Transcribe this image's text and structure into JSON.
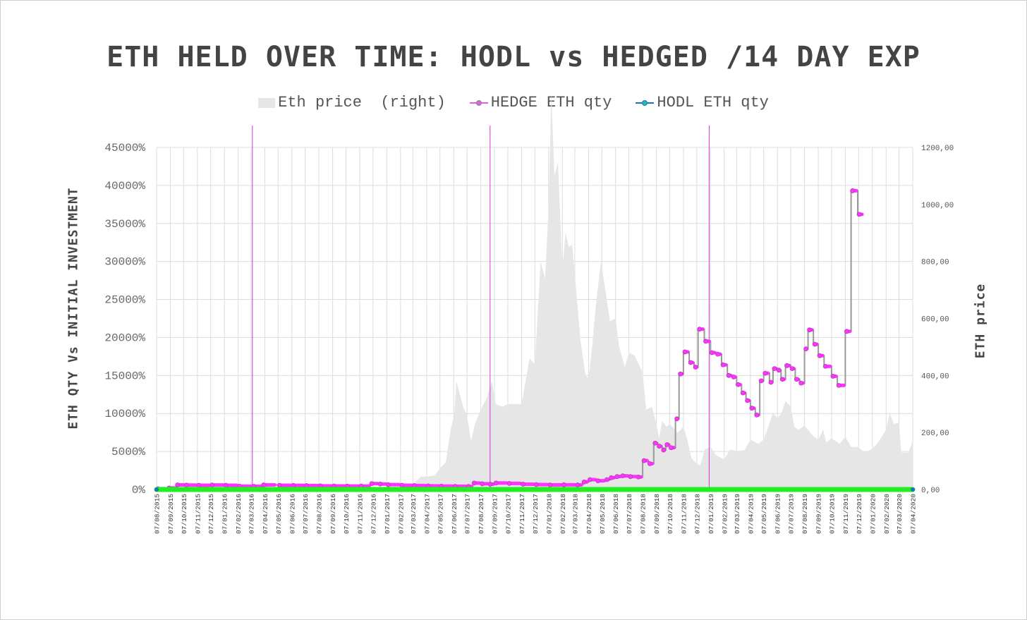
{
  "chart_data": {
    "type": "line",
    "title": "ETH HELD OVER TIME: HODL vs HEDGED /14 DAY EXP",
    "ylabel": "ETH QTY Vs INITIAL INVESTMENT",
    "ylabel_right": "ETH price",
    "ylim": [
      0,
      45000
    ],
    "ylim_right": [
      0,
      1200
    ],
    "y_ticks": [
      "0%",
      "5000%",
      "10000%",
      "15000%",
      "20000%",
      "25000%",
      "30000%",
      "35000%",
      "40000%",
      "45000%"
    ],
    "y_ticks_right": [
      "0,00",
      "200,00",
      "400,00",
      "600,00",
      "800,00",
      "1000,00",
      "1200,00"
    ],
    "x_ticks": [
      "07/08/2015",
      "07/09/2015",
      "07/10/2015",
      "07/11/2015",
      "07/12/2015",
      "07/01/2016",
      "07/02/2016",
      "07/03/2016",
      "07/04/2016",
      "07/05/2016",
      "07/06/2016",
      "07/07/2016",
      "07/08/2016",
      "07/09/2016",
      "07/10/2016",
      "07/11/2016",
      "07/12/2016",
      "07/01/2017",
      "07/02/2017",
      "07/03/2017",
      "07/04/2017",
      "07/05/2017",
      "07/06/2017",
      "07/07/2017",
      "07/08/2017",
      "07/09/2017",
      "07/10/2017",
      "07/11/2017",
      "07/12/2017",
      "07/01/2018",
      "07/02/2018",
      "07/03/2018",
      "07/04/2018",
      "07/05/2018",
      "07/06/2018",
      "07/07/2018",
      "07/08/2018",
      "07/09/2018",
      "07/10/2018",
      "07/11/2018",
      "07/12/2018",
      "07/01/2019",
      "07/02/2019",
      "07/03/2019",
      "07/04/2019",
      "07/05/2019",
      "07/06/2019",
      "07/07/2019",
      "07/08/2019",
      "07/09/2019",
      "07/10/2019",
      "07/11/2019",
      "07/12/2019",
      "07/01/2020",
      "07/02/2020",
      "07/03/2020",
      "07/04/2020"
    ],
    "legend_position": "top-center",
    "grid": true,
    "vertical_markers": [
      "2016-03-10",
      "2017-08-28",
      "2019-01-04"
    ],
    "colors": {
      "eth_price": "#e6e6e6",
      "hedge": "#ff33ff",
      "hedge_line": "#999999",
      "hodl": "#22ee22",
      "marker_lines": "#d633d6",
      "grid": "#dcdcdc"
    },
    "series": [
      {
        "name": "Eth price  (right)",
        "kind": "area",
        "axis": "right",
        "points": [
          [
            "2015-08-07",
            3
          ],
          [
            "2015-09-07",
            1
          ],
          [
            "2015-10-07",
            0.6
          ],
          [
            "2015-11-07",
            1
          ],
          [
            "2015-12-07",
            0.9
          ],
          [
            "2016-01-07",
            1
          ],
          [
            "2016-02-07",
            2
          ],
          [
            "2016-03-07",
            8
          ],
          [
            "2016-04-07",
            10
          ],
          [
            "2016-05-07",
            9
          ],
          [
            "2016-06-07",
            14
          ],
          [
            "2016-07-07",
            11
          ],
          [
            "2016-08-07",
            11
          ],
          [
            "2016-09-07",
            12
          ],
          [
            "2016-10-07",
            12
          ],
          [
            "2016-11-07",
            10
          ],
          [
            "2016-12-07",
            8
          ],
          [
            "2017-01-07",
            10
          ],
          [
            "2017-02-07",
            11
          ],
          [
            "2017-03-07",
            18
          ],
          [
            "2017-03-25",
            45
          ],
          [
            "2017-04-07",
            45
          ],
          [
            "2017-04-25",
            50
          ],
          [
            "2017-05-07",
            75
          ],
          [
            "2017-05-20",
            95
          ],
          [
            "2017-05-31",
            210
          ],
          [
            "2017-06-08",
            260
          ],
          [
            "2017-06-13",
            380
          ],
          [
            "2017-06-20",
            340
          ],
          [
            "2017-06-28",
            290
          ],
          [
            "2017-07-07",
            260
          ],
          [
            "2017-07-16",
            170
          ],
          [
            "2017-07-25",
            230
          ],
          [
            "2017-08-07",
            280
          ],
          [
            "2017-08-20",
            320
          ],
          [
            "2017-09-01",
            380
          ],
          [
            "2017-09-10",
            300
          ],
          [
            "2017-09-25",
            290
          ],
          [
            "2017-10-07",
            300
          ],
          [
            "2017-10-25",
            300
          ],
          [
            "2017-11-07",
            300
          ],
          [
            "2017-11-25",
            460
          ],
          [
            "2017-12-07",
            440
          ],
          [
            "2017-12-20",
            800
          ],
          [
            "2017-12-30",
            740
          ],
          [
            "2018-01-07",
            990
          ],
          [
            "2018-01-13",
            1390
          ],
          [
            "2018-01-20",
            1100
          ],
          [
            "2018-01-28",
            1150
          ],
          [
            "2018-02-07",
            770
          ],
          [
            "2018-02-14",
            900
          ],
          [
            "2018-02-22",
            850
          ],
          [
            "2018-03-01",
            860
          ],
          [
            "2018-03-10",
            700
          ],
          [
            "2018-03-20",
            520
          ],
          [
            "2018-03-31",
            400
          ],
          [
            "2018-04-07",
            390
          ],
          [
            "2018-04-15",
            500
          ],
          [
            "2018-04-23",
            640
          ],
          [
            "2018-05-05",
            800
          ],
          [
            "2018-05-15",
            700
          ],
          [
            "2018-05-25",
            590
          ],
          [
            "2018-06-07",
            600
          ],
          [
            "2018-06-15",
            500
          ],
          [
            "2018-06-28",
            430
          ],
          [
            "2018-07-07",
            480
          ],
          [
            "2018-07-20",
            470
          ],
          [
            "2018-08-07",
            410
          ],
          [
            "2018-08-15",
            280
          ],
          [
            "2018-08-28",
            290
          ],
          [
            "2018-09-07",
            230
          ],
          [
            "2018-09-13",
            180
          ],
          [
            "2018-09-20",
            240
          ],
          [
            "2018-09-30",
            220
          ],
          [
            "2018-10-07",
            230
          ],
          [
            "2018-10-25",
            200
          ],
          [
            "2018-11-07",
            220
          ],
          [
            "2018-11-15",
            180
          ],
          [
            "2018-11-25",
            110
          ],
          [
            "2018-12-07",
            90
          ],
          [
            "2018-12-15",
            85
          ],
          [
            "2018-12-25",
            140
          ],
          [
            "2019-01-07",
            150
          ],
          [
            "2019-01-20",
            120
          ],
          [
            "2019-02-07",
            105
          ],
          [
            "2019-02-20",
            140
          ],
          [
            "2019-03-07",
            135
          ],
          [
            "2019-03-25",
            138
          ],
          [
            "2019-04-07",
            175
          ],
          [
            "2019-04-25",
            160
          ],
          [
            "2019-05-07",
            175
          ],
          [
            "2019-05-15",
            210
          ],
          [
            "2019-05-28",
            270
          ],
          [
            "2019-06-07",
            250
          ],
          [
            "2019-06-15",
            265
          ],
          [
            "2019-06-25",
            310
          ],
          [
            "2019-07-07",
            290
          ],
          [
            "2019-07-15",
            220
          ],
          [
            "2019-07-25",
            210
          ],
          [
            "2019-08-07",
            225
          ],
          [
            "2019-08-25",
            190
          ],
          [
            "2019-09-07",
            175
          ],
          [
            "2019-09-18",
            210
          ],
          [
            "2019-09-25",
            165
          ],
          [
            "2019-10-07",
            180
          ],
          [
            "2019-10-25",
            160
          ],
          [
            "2019-11-07",
            185
          ],
          [
            "2019-11-20",
            150
          ],
          [
            "2019-12-07",
            148
          ],
          [
            "2019-12-20",
            130
          ],
          [
            "2020-01-07",
            143
          ],
          [
            "2020-01-20",
            165
          ],
          [
            "2020-02-07",
            210
          ],
          [
            "2020-02-15",
            270
          ],
          [
            "2020-02-24",
            230
          ],
          [
            "2020-03-07",
            235
          ],
          [
            "2020-03-12",
            130
          ],
          [
            "2020-03-20",
            130
          ],
          [
            "2020-03-28",
            130
          ],
          [
            "2020-04-07",
            170
          ]
        ]
      },
      {
        "name": "HEDGE ETH qty",
        "kind": "line",
        "axis": "left",
        "points": [
          [
            "2015-08-07",
            100
          ],
          [
            "2015-09-01",
            200
          ],
          [
            "2015-09-20",
            600
          ],
          [
            "2015-10-10",
            580
          ],
          [
            "2015-11-07",
            560
          ],
          [
            "2015-12-07",
            590
          ],
          [
            "2016-01-07",
            560
          ],
          [
            "2016-02-07",
            430
          ],
          [
            "2016-03-10",
            420
          ],
          [
            "2016-04-01",
            600
          ],
          [
            "2016-05-07",
            560
          ],
          [
            "2016-06-07",
            540
          ],
          [
            "2016-07-07",
            520
          ],
          [
            "2016-08-07",
            480
          ],
          [
            "2016-09-07",
            460
          ],
          [
            "2016-10-07",
            450
          ],
          [
            "2016-11-07",
            450
          ],
          [
            "2016-12-01",
            780
          ],
          [
            "2016-12-20",
            720
          ],
          [
            "2017-01-07",
            640
          ],
          [
            "2017-02-07",
            560
          ],
          [
            "2017-03-07",
            520
          ],
          [
            "2017-04-07",
            470
          ],
          [
            "2017-05-07",
            440
          ],
          [
            "2017-06-07",
            420
          ],
          [
            "2017-07-07",
            400
          ],
          [
            "2017-07-20",
            850
          ],
          [
            "2017-08-07",
            750
          ],
          [
            "2017-08-25",
            700
          ],
          [
            "2017-09-07",
            860
          ],
          [
            "2017-10-07",
            800
          ],
          [
            "2017-11-07",
            700
          ],
          [
            "2017-12-07",
            650
          ],
          [
            "2018-01-07",
            600
          ],
          [
            "2018-02-07",
            620
          ],
          [
            "2018-03-10",
            600
          ],
          [
            "2018-03-25",
            1000
          ],
          [
            "2018-04-07",
            1300
          ],
          [
            "2018-04-25",
            1150
          ],
          [
            "2018-05-15",
            1300
          ],
          [
            "2018-05-25",
            1550
          ],
          [
            "2018-06-07",
            1700
          ],
          [
            "2018-06-20",
            1800
          ],
          [
            "2018-07-07",
            1700
          ],
          [
            "2018-07-25",
            1650
          ],
          [
            "2018-08-07",
            3800
          ],
          [
            "2018-08-20",
            3400
          ],
          [
            "2018-09-01",
            6100
          ],
          [
            "2018-09-10",
            5700
          ],
          [
            "2018-09-20",
            5200
          ],
          [
            "2018-09-28",
            5900
          ],
          [
            "2018-10-07",
            5500
          ],
          [
            "2018-10-20",
            9300
          ],
          [
            "2018-10-28",
            15200
          ],
          [
            "2018-11-07",
            18100
          ],
          [
            "2018-11-20",
            16700
          ],
          [
            "2018-12-01",
            16100
          ],
          [
            "2018-12-10",
            21100
          ],
          [
            "2018-12-24",
            19500
          ],
          [
            "2019-01-07",
            18000
          ],
          [
            "2019-01-20",
            17800
          ],
          [
            "2019-02-01",
            16400
          ],
          [
            "2019-02-14",
            15000
          ],
          [
            "2019-02-25",
            14800
          ],
          [
            "2019-03-07",
            13800
          ],
          [
            "2019-03-18",
            12700
          ],
          [
            "2019-03-28",
            11700
          ],
          [
            "2019-04-07",
            10700
          ],
          [
            "2019-04-18",
            9800
          ],
          [
            "2019-04-28",
            14300
          ],
          [
            "2019-05-07",
            15300
          ],
          [
            "2019-05-20",
            14100
          ],
          [
            "2019-05-28",
            15900
          ],
          [
            "2019-06-07",
            15700
          ],
          [
            "2019-06-15",
            14500
          ],
          [
            "2019-06-25",
            16300
          ],
          [
            "2019-07-07",
            15900
          ],
          [
            "2019-07-17",
            14500
          ],
          [
            "2019-07-27",
            14000
          ],
          [
            "2019-08-07",
            18500
          ],
          [
            "2019-08-15",
            21000
          ],
          [
            "2019-08-27",
            19100
          ],
          [
            "2019-09-07",
            17600
          ],
          [
            "2019-09-20",
            16200
          ],
          [
            "2019-10-07",
            14900
          ],
          [
            "2019-10-20",
            13700
          ],
          [
            "2019-11-07",
            20800
          ],
          [
            "2019-11-20",
            39300
          ],
          [
            "2019-12-05",
            36200
          ]
        ]
      },
      {
        "name": "HODL ETH qty",
        "kind": "line",
        "axis": "left",
        "points": [
          [
            "2015-08-07",
            0
          ],
          [
            "2020-04-07",
            0
          ]
        ]
      }
    ]
  }
}
